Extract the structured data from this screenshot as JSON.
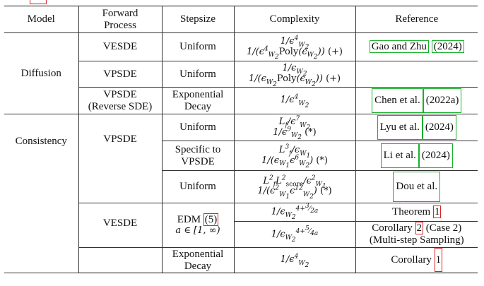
{
  "header": {
    "model": "Model",
    "forward_line1": "Forward",
    "forward_line2": "Process",
    "stepsize": "Stepsize",
    "complexity": "Complexity",
    "reference": "Reference"
  },
  "rows": {
    "r1": {
      "model": "Diffusion",
      "forward": "VESDE",
      "stepsize": "Uniform",
      "comp_a": "1/ϵ⁴W₂",
      "comp_b": "1/(ϵ⁴W₂Poly(ϵW₂)) (+)",
      "ref_a": "Gao and Zhu",
      "ref_b": "(2024)"
    },
    "r2": {
      "forward": "VPSDE",
      "stepsize": "Uniform",
      "comp_a": "1/ϵW₂",
      "comp_b": "1/(ϵW₂Poly(ϵW₂)) (+)"
    },
    "r3": {
      "forward_1": "VPSDE",
      "forward_2": "(Reverse SDE)",
      "step_1": "Exponential",
      "step_2": "Decay",
      "comp_a": "1/ϵ⁴W₂",
      "ref_a": "Chen et al.",
      "ref_b": "(2022a)"
    },
    "r4": {
      "model": "Consistency",
      "forward": "VPSDE",
      "stepsize": "Uniform",
      "comp_a": "Lf/ϵ⁷W₂",
      "comp_b": "1/ϵ⁹W₂ (*)",
      "ref_a": "Lyu et al.",
      "ref_b": "(2024)"
    },
    "r5": {
      "step_1": "Specific to",
      "step_2": "VPSDE",
      "comp_a": "L³f/ϵW₁",
      "comp_b": "1/(ϵW₁ϵ⁶W₂) (*)",
      "ref_a": "Li et al.",
      "ref_b": "(2024)"
    },
    "r6": {
      "stepsize": "Uniform",
      "comp_a": "L²fL²score/ϵ²W₁",
      "comp_b": "1/(ϵ²W₁ϵ¹²W₂) (*)",
      "ref_a": "Dou et al."
    },
    "r7": {
      "forward": "VESDE",
      "step_1": "EDM",
      "step_ref": "(5)",
      "step_2": "a ∈ [1, ∞)",
      "comp_a": "1/ϵW₂^(4+3/2a)",
      "ref_word": "Theorem",
      "ref_num": "1"
    },
    "r8": {
      "comp_a": "1/ϵW₂^(4+5/4a)",
      "ref_word": "Corollary",
      "ref_num": "2",
      "ref_tail": "(Case 2)",
      "ref_line2": "(Multi-step Sampling)"
    },
    "r9": {
      "step_1": "Exponential",
      "step_2": "Decay",
      "comp_a": "1/ϵ⁴W₂",
      "ref_word": "Corollary",
      "ref_num": "1"
    }
  }
}
